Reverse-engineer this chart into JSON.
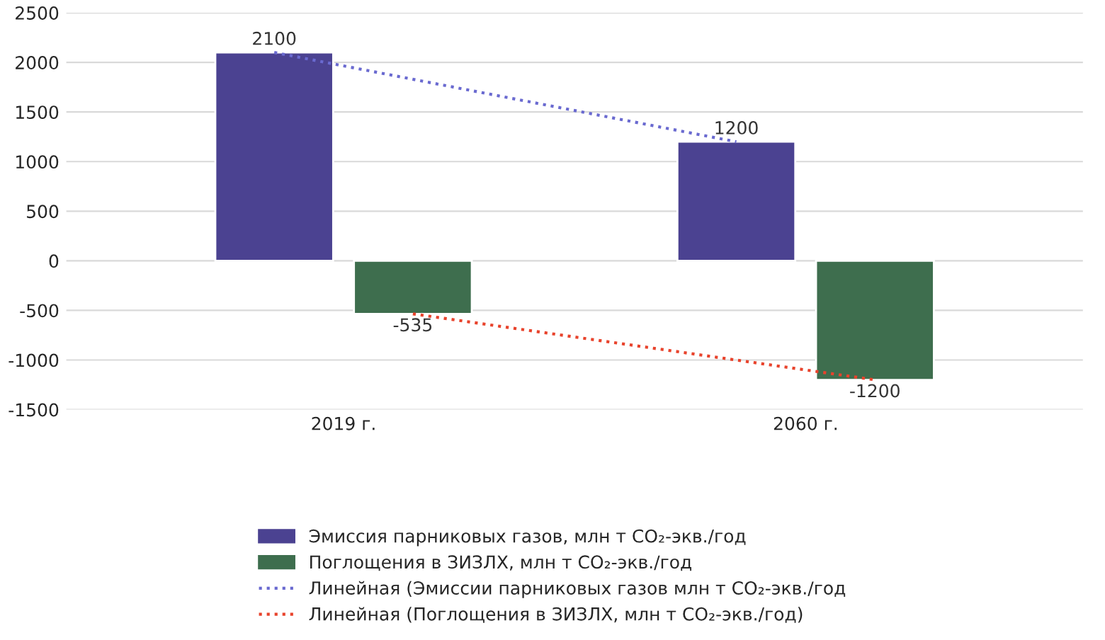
{
  "chart_data": {
    "type": "bar",
    "categories": [
      "2019 г.",
      "2060 г."
    ],
    "series": [
      {
        "name": "Эмиссия парниковых газов, млн т CO₂-экв./год",
        "color": "#4b4291",
        "values": [
          2100,
          1200
        ],
        "value_labels": [
          "2100",
          "1200"
        ]
      },
      {
        "name": "Поглощения в ЗИЗЛХ, млн т CO₂-экв./год",
        "color": "#3e6e4e",
        "values": [
          -535,
          -1200
        ],
        "value_labels": [
          "-535",
          "-1200"
        ]
      },
      {
        "name": "Линейная (Эмиссии парниковых газов млн т CO₂-экв./год",
        "type": "line",
        "line_style": "dotted",
        "color": "#6a6ad0",
        "values": [
          2100,
          1200
        ]
      },
      {
        "name": "Линейная (Поглощения в ЗИЗЛХ, млн т CO₂-экв./год)",
        "type": "line",
        "line_style": "dotted",
        "color": "#e8432c",
        "values": [
          -535,
          -1200
        ]
      }
    ],
    "ylim": [
      -1500,
      2500
    ],
    "yticks": [
      -1500,
      -1000,
      -500,
      0,
      500,
      1000,
      1500,
      2000,
      2500
    ],
    "grid": "y",
    "legend": "bottom"
  }
}
